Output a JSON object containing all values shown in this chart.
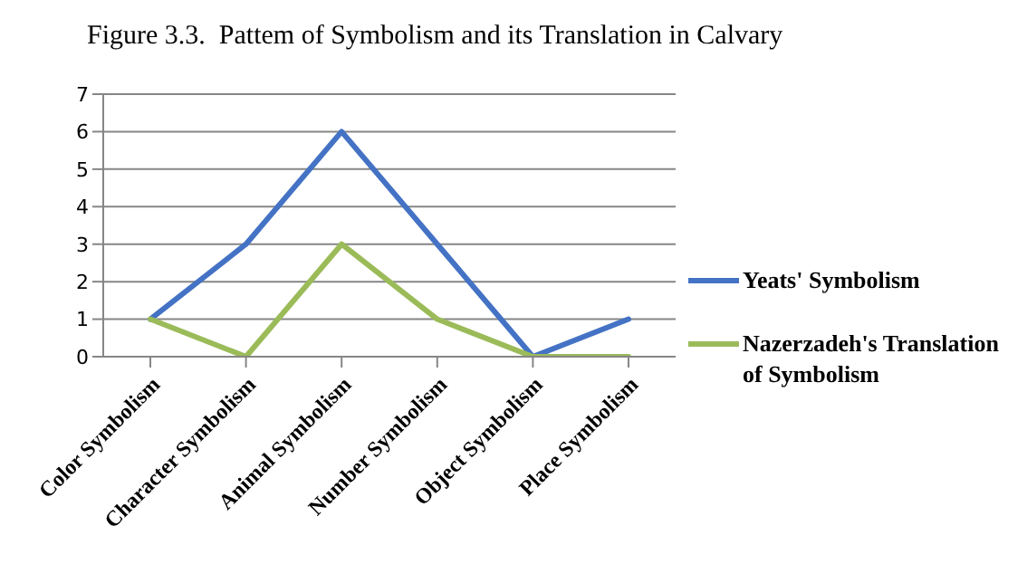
{
  "chart_data": {
    "type": "line",
    "title": "Figure 3.3.  Pattem of Symbolism and its Translation in Calvary",
    "categories": [
      "Color Symbolism",
      "Character Symbolism",
      "Animal Symbolism",
      "Number Symbolism",
      "Object Symbolism",
      "Place Symbolism"
    ],
    "series": [
      {
        "name": "Yeats' Symbolism",
        "color": "#4472c4",
        "values": [
          1,
          3,
          6,
          3,
          0,
          1
        ]
      },
      {
        "name": "Nazerzadeh's Translation of Symbolism",
        "color": "#9bbb59",
        "values": [
          1,
          0,
          3,
          1,
          0,
          0
        ]
      }
    ],
    "ylim": [
      0,
      7
    ],
    "yticks": [
      0,
      1,
      2,
      3,
      4,
      5,
      6,
      7
    ],
    "grid": "y",
    "legend": "right",
    "marker": "none",
    "line_style": "solid"
  }
}
